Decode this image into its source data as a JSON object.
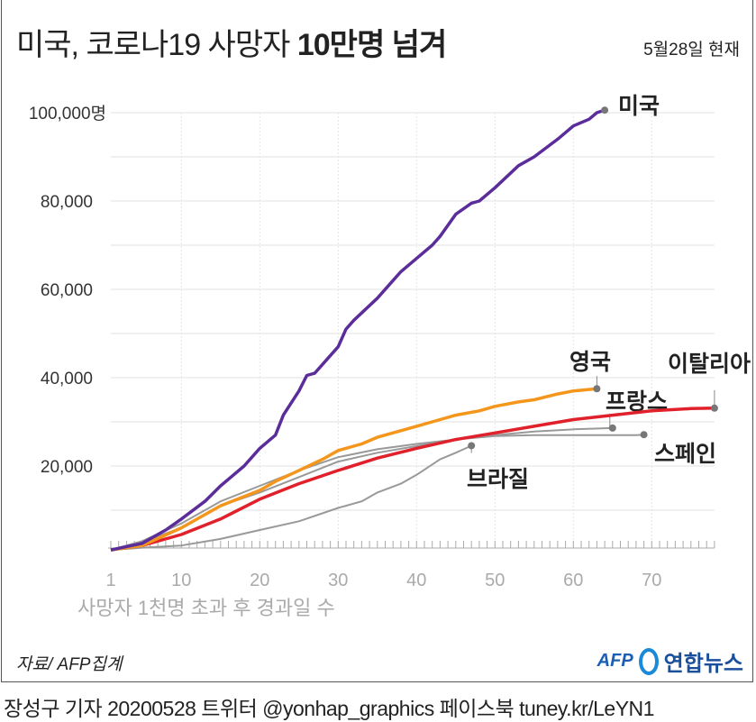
{
  "title_normal": "미국, 코로나19 사망자 ",
  "title_bold": "10만명 넘겨",
  "date": "5월28일 현재",
  "source": "자료/ AFP집계",
  "logo": {
    "afp": "AFP",
    "yonhap": "연합뉴스"
  },
  "footer": "장성구 기자  20200528  트위터 @yonhap_graphics  페이스북 tuney.kr/LeYN1",
  "chart_data": {
    "type": "line",
    "title": "미국, 코로나19 사망자 10만명 넘겨",
    "xlabel": "사망자 1천명 초과 후 경과일 수",
    "ylabel": "",
    "xlim": [
      1,
      78
    ],
    "ylim": [
      0,
      100000
    ],
    "xticks": [
      "1",
      "10",
      "20",
      "30",
      "40",
      "50",
      "60",
      "70"
    ],
    "xtick_values": [
      1,
      10,
      20,
      30,
      40,
      50,
      60,
      70
    ],
    "yticks": [
      "20,000",
      "40,000",
      "60,000",
      "80,000",
      "100,000명"
    ],
    "ytick_values": [
      20000,
      40000,
      60000,
      80000,
      100000
    ],
    "grid": true,
    "series": [
      {
        "name": "브라질",
        "color": "#999999",
        "x": [
          1,
          5,
          10,
          15,
          20,
          25,
          30,
          33,
          35,
          38,
          40,
          43,
          45,
          47
        ],
        "y": [
          1000,
          1500,
          2000,
          3500,
          5500,
          7500,
          10500,
          12000,
          14000,
          16000,
          18000,
          21500,
          23000,
          24600
        ]
      },
      {
        "name": "스페인",
        "color": "#999999",
        "x": [
          1,
          5,
          10,
          15,
          20,
          25,
          30,
          35,
          40,
          45,
          50,
          55,
          60,
          65,
          68,
          69
        ],
        "y": [
          1000,
          3000,
          7000,
          12000,
          15500,
          19000,
          22000,
          23800,
          25000,
          26000,
          26800,
          27000,
          27000,
          27000,
          27000,
          27100
        ]
      },
      {
        "name": "프랑스",
        "color": "#999999",
        "x": [
          1,
          5,
          10,
          15,
          20,
          25,
          30,
          35,
          40,
          45,
          50,
          55,
          60,
          65
        ],
        "y": [
          1000,
          2800,
          6000,
          11000,
          14000,
          17500,
          21000,
          23000,
          24500,
          26000,
          27000,
          27800,
          28300,
          28600
        ]
      },
      {
        "name": "이탈리아",
        "color": "#e0212b",
        "x": [
          1,
          5,
          10,
          15,
          20,
          25,
          30,
          35,
          40,
          45,
          50,
          55,
          60,
          65,
          70,
          75,
          78
        ],
        "y": [
          1000,
          2000,
          4500,
          8000,
          12500,
          16000,
          19000,
          21800,
          24000,
          26000,
          27500,
          29000,
          30500,
          31500,
          32500,
          33000,
          33100
        ]
      },
      {
        "name": "영국",
        "color": "#f5961c",
        "x": [
          1,
          5,
          10,
          15,
          20,
          22,
          25,
          28,
          30,
          33,
          35,
          38,
          40,
          43,
          45,
          48,
          50,
          53,
          55,
          58,
          60,
          63
        ],
        "y": [
          1000,
          2000,
          6000,
          11000,
          14500,
          16500,
          19000,
          21500,
          23500,
          25000,
          26500,
          28000,
          29000,
          30500,
          31500,
          32500,
          33500,
          34500,
          35000,
          36300,
          37000,
          37500
        ]
      },
      {
        "name": "미국",
        "color": "#5b2d9a",
        "x": [
          1,
          5,
          8,
          10,
          13,
          15,
          18,
          20,
          22,
          23,
          25,
          26,
          27,
          28,
          30,
          31,
          32,
          35,
          37,
          38,
          40,
          42,
          43,
          45,
          47,
          48,
          50,
          53,
          55,
          58,
          60,
          62,
          63,
          64
        ],
        "y": [
          1000,
          2500,
          5500,
          8000,
          12000,
          15500,
          20000,
          24000,
          27000,
          31500,
          37000,
          40500,
          41000,
          43000,
          47000,
          51000,
          53000,
          58000,
          62000,
          64000,
          67000,
          70000,
          72000,
          77000,
          79500,
          80000,
          83000,
          88000,
          90000,
          94000,
          97000,
          98500,
          100000,
          100572
        ]
      }
    ]
  }
}
